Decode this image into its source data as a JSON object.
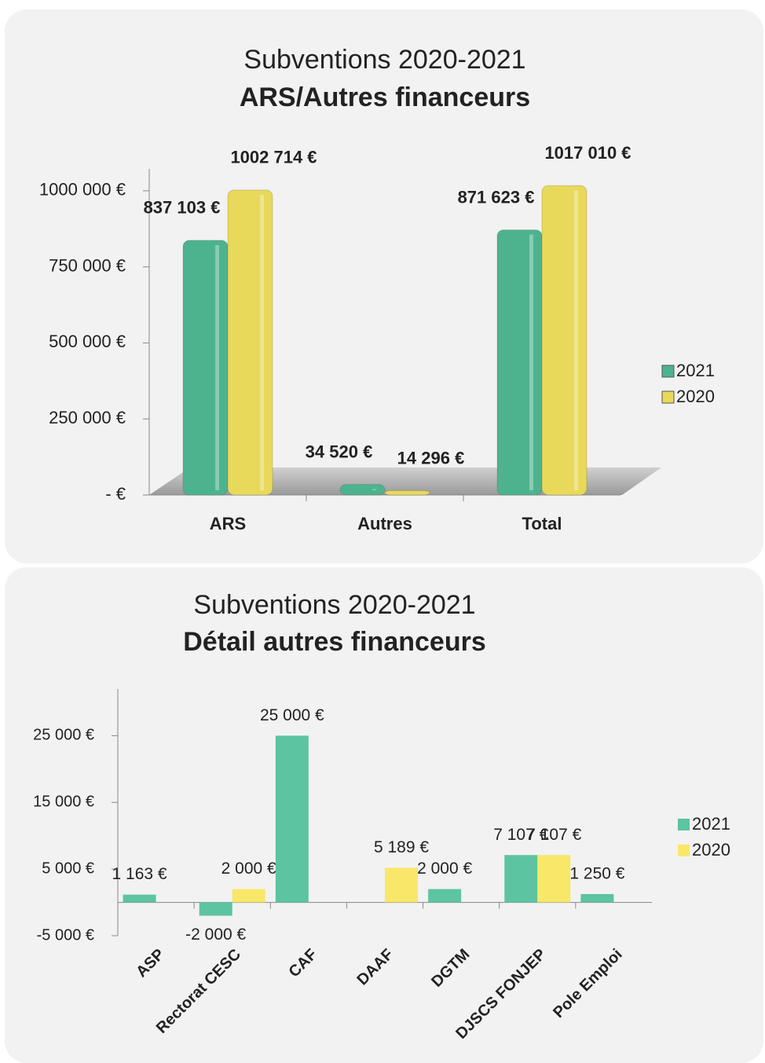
{
  "chart_data": [
    {
      "type": "bar",
      "title": "Subventions 2020-2021",
      "subtitle": "ARS/Autres financeurs",
      "categories": [
        "ARS",
        "Autres",
        "Total"
      ],
      "series": [
        {
          "name": "2021",
          "color": "#4db38f",
          "values": [
            837103,
            34520,
            871623
          ],
          "value_labels": [
            "837 103 €",
            "34 520 €",
            "871 623 €"
          ]
        },
        {
          "name": "2020",
          "color": "#e8d95a",
          "values": [
            1002714,
            14296,
            1017010
          ],
          "value_labels": [
            "1002 714 €",
            "14 296 €",
            "1017 010 €"
          ]
        }
      ],
      "ylim": [
        0,
        1072000
      ],
      "yticks": [
        {
          "value": 0,
          "label": "-   €"
        },
        {
          "value": 250000,
          "label": "250 000 €"
        },
        {
          "value": 500000,
          "label": "500 000 €"
        },
        {
          "value": 750000,
          "label": "750 000 €"
        },
        {
          "value": 1000000,
          "label": "1000 000 €"
        }
      ],
      "legend": "right"
    },
    {
      "type": "bar",
      "title": "Subventions 2020-2021",
      "subtitle": "Détail autres financeurs",
      "categories": [
        "ASP",
        "Rectorat CESC",
        "CAF",
        "DAAF",
        "DGTM",
        "DJSCS FONJEP",
        "Pole Emploi"
      ],
      "series": [
        {
          "name": "2021",
          "color": "#5cc4a0",
          "values": [
            1163,
            -2000,
            25000,
            null,
            2000,
            7107,
            1250
          ],
          "value_labels": [
            "1 163 €",
            "-2 000 €",
            "25 000 €",
            null,
            "2 000 €",
            "7 107 €",
            "1 250 €"
          ]
        },
        {
          "name": "2020",
          "color": "#f9e76a",
          "values": [
            null,
            2000,
            null,
            5189,
            null,
            7107,
            null
          ],
          "value_labels": [
            null,
            "2 000 €",
            null,
            "5 189 €",
            null,
            "7 107 €",
            null
          ]
        }
      ],
      "ylim": [
        -5000,
        32000
      ],
      "yticks": [
        {
          "value": -5000,
          "label": "-5 000 €"
        },
        {
          "value": 5000,
          "label": "5 000 €"
        },
        {
          "value": 15000,
          "label": "15 000 €"
        },
        {
          "value": 25000,
          "label": "25 000 €"
        }
      ],
      "legend": "right"
    }
  ]
}
